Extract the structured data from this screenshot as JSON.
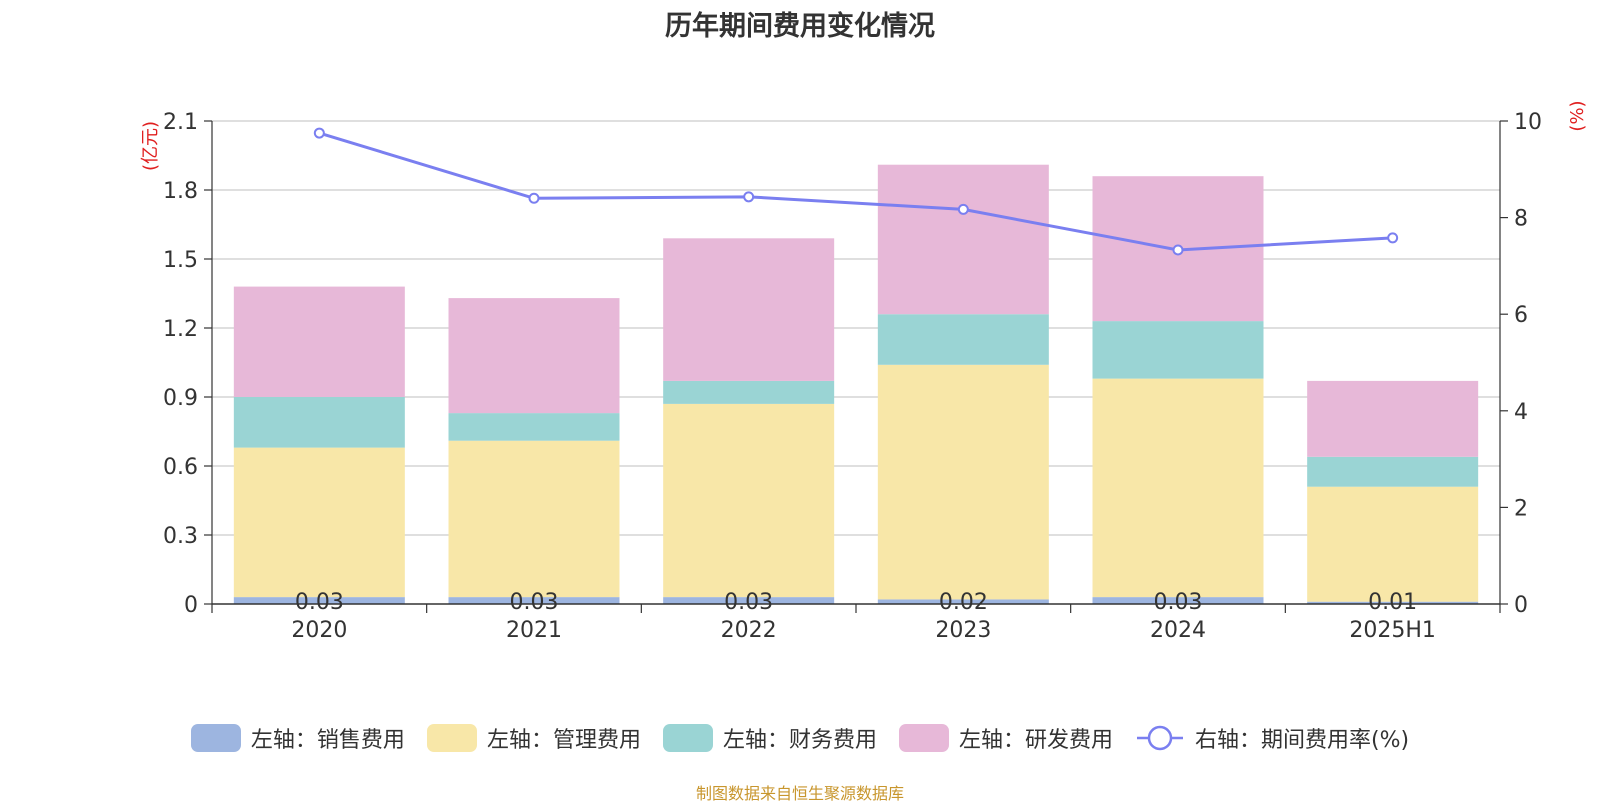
{
  "title": "历年期间费用变化情况",
  "source": "制图数据来自恒生聚源数据库",
  "chart_data": {
    "type": "bar",
    "stacked": true,
    "categories": [
      "2020",
      "2021",
      "2022",
      "2023",
      "2024",
      "2025H1"
    ],
    "ylabel_left": "(亿元)",
    "ylabel_right": "(%)",
    "ylim_left": [
      0,
      2.1
    ],
    "yticks_left": [
      "0",
      "0.3",
      "0.6",
      "0.9",
      "1.2",
      "1.5",
      "1.8",
      "2.1"
    ],
    "ylim_right": [
      0,
      10
    ],
    "yticks_right": [
      "0",
      "2",
      "4",
      "6",
      "8",
      "10"
    ],
    "grid": true,
    "legend_position": "bottom",
    "series": [
      {
        "name": "左轴：销售费用",
        "axis": "left",
        "color": "#9db5e0",
        "values": [
          0.03,
          0.03,
          0.03,
          0.02,
          0.03,
          0.01
        ],
        "labels": [
          "0.03",
          "0.03",
          "0.03",
          "0.02",
          "0.03",
          "0.01"
        ]
      },
      {
        "name": "左轴：管理费用",
        "axis": "left",
        "color": "#f8e7a8",
        "values": [
          0.65,
          0.68,
          0.84,
          1.02,
          0.95,
          0.5
        ]
      },
      {
        "name": "左轴：财务费用",
        "axis": "left",
        "color": "#9ad4d4",
        "values": [
          0.22,
          0.12,
          0.1,
          0.22,
          0.25,
          0.13
        ]
      },
      {
        "name": "左轴：研发费用",
        "axis": "left",
        "color": "#e7b8d8",
        "values": [
          0.48,
          0.5,
          0.62,
          0.65,
          0.63,
          0.33
        ]
      }
    ],
    "line_series": {
      "name": "右轴：期间费用率(%)",
      "axis": "right",
      "color": "#7a7ff0",
      "values": [
        9.75,
        8.4,
        8.43,
        8.17,
        7.33,
        7.58
      ]
    }
  }
}
